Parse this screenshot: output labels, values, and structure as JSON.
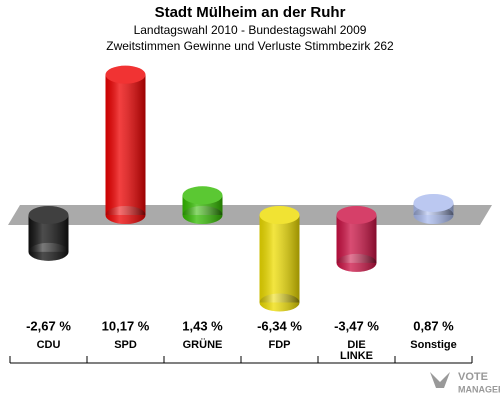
{
  "chart_data": {
    "type": "bar",
    "title": "Stadt Mülheim an der Ruhr",
    "subtitle": [
      "Landtagswahl 2010 - Bundestagswahl 2009",
      "Zweitstimmen Gewinne und Verluste Stimmbezirk 262"
    ],
    "categories": [
      "CDU",
      "SPD",
      "GRÜNE",
      "FDP",
      "DIE LINKE",
      "Sonstige"
    ],
    "values": [
      -2.67,
      10.17,
      1.43,
      -6.34,
      -3.47,
      0.87
    ],
    "value_labels": [
      "-2,67 %",
      "10,17 %",
      "1,43 %",
      "-6,34 %",
      "-3,47 %",
      "0,87 %"
    ],
    "colors": [
      "#111111",
      "#ee0000",
      "#33bb00",
      "#eedd00",
      "#cc1144",
      "#aabbee"
    ],
    "watermark": [
      "VOTE",
      "MANAGER"
    ]
  }
}
